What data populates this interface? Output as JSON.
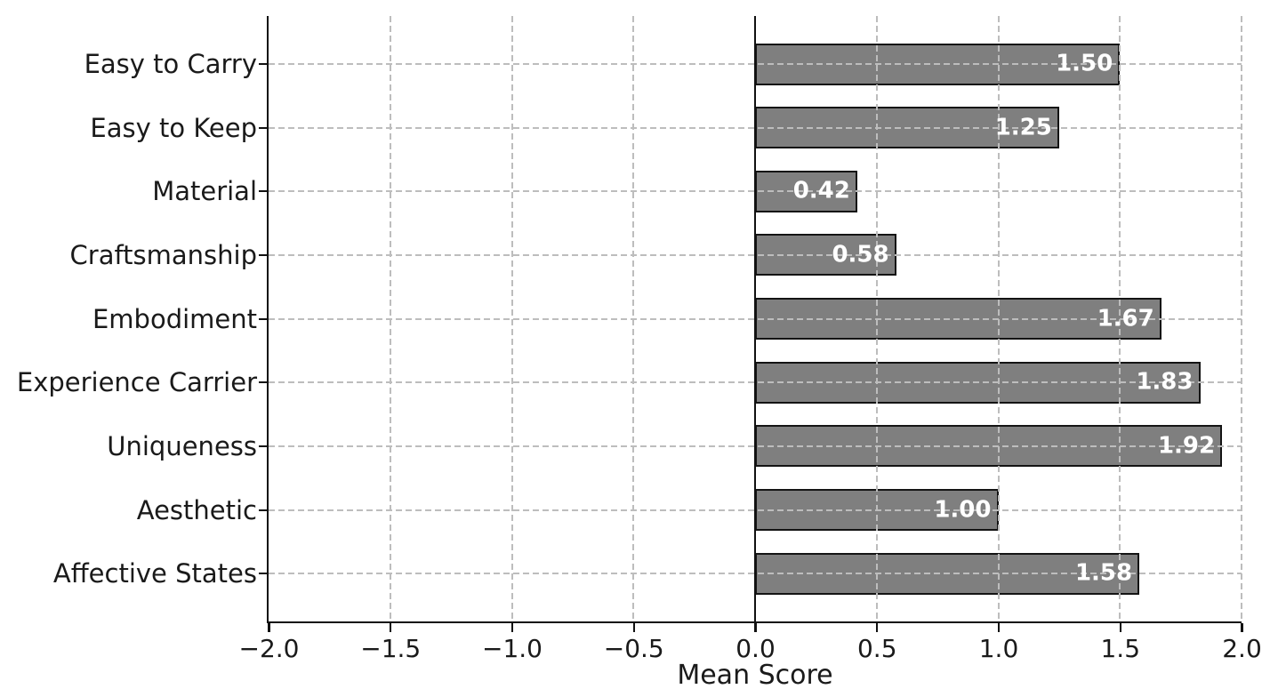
{
  "chart_data": {
    "type": "bar",
    "orientation": "horizontal",
    "title": "",
    "xlabel": "Mean Score",
    "ylabel": "",
    "xlim": [
      -2.0,
      2.0
    ],
    "xticks": [
      -2.0,
      -1.5,
      -1.0,
      -0.5,
      0.0,
      0.5,
      1.0,
      1.5,
      2.0
    ],
    "xtick_labels": [
      "−2.0",
      "−1.5",
      "−1.0",
      "−0.5",
      "0.0",
      "0.5",
      "1.0",
      "1.5",
      "2.0"
    ],
    "categories": [
      "Easy to Carry",
      "Easy to Keep",
      "Material",
      "Craftsmanship",
      "Embodiment",
      "Experience Carrier",
      "Uniqueness",
      "Aesthetic",
      "Affective States"
    ],
    "values": [
      1.5,
      1.25,
      0.42,
      0.58,
      1.67,
      1.83,
      1.92,
      1.0,
      1.58
    ],
    "value_labels": [
      "1.50",
      "1.25",
      "0.42",
      "0.58",
      "1.67",
      "1.83",
      "1.92",
      "1.00",
      "1.58"
    ],
    "grid": true,
    "grid_style": "dashed",
    "grid_over_bars": true,
    "legend": null,
    "bar_color": "#7f7f7f",
    "bar_edge_color": "#141414",
    "value_label_color": "#ffffff",
    "zero_line": true
  }
}
